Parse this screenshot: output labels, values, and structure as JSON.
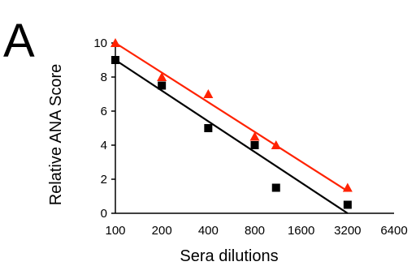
{
  "chart_data": {
    "type": "scatter",
    "panel_label": "A",
    "xlabel": "Sera dilutions",
    "ylabel": "Relative ANA Score",
    "x_scale": "log2",
    "xlim": [
      100,
      6400
    ],
    "ylim": [
      0,
      10
    ],
    "x_ticks": [
      100,
      200,
      400,
      800,
      1600,
      3200,
      6400
    ],
    "x_tick_labels": [
      "100",
      "200",
      "400",
      "800",
      "1600",
      "3200",
      "6400"
    ],
    "y_ticks": [
      0,
      2,
      4,
      6,
      8,
      10
    ],
    "y_tick_labels": [
      "0",
      "2",
      "4",
      "6",
      "8",
      "10"
    ],
    "grid": false,
    "series": [
      {
        "marker": "square",
        "color": "#000000",
        "points": [
          {
            "x": 100,
            "y": 9.0
          },
          {
            "x": 200,
            "y": 7.5
          },
          {
            "x": 400,
            "y": 5.0
          },
          {
            "x": 800,
            "y": 4.0
          },
          {
            "x": 1100,
            "y": 1.5
          },
          {
            "x": 3200,
            "y": 0.5
          }
        ],
        "fit_line": {
          "x": [
            100,
            3200
          ],
          "y": [
            9.0,
            0.0
          ]
        }
      },
      {
        "marker": "triangle",
        "color": "#ff2200",
        "points": [
          {
            "x": 100,
            "y": 10.0
          },
          {
            "x": 200,
            "y": 8.0
          },
          {
            "x": 400,
            "y": 7.0
          },
          {
            "x": 800,
            "y": 4.5
          },
          {
            "x": 1100,
            "y": 4.0
          },
          {
            "x": 3200,
            "y": 1.5
          }
        ],
        "fit_line": {
          "x": [
            100,
            3200
          ],
          "y": [
            10.0,
            1.3
          ]
        }
      }
    ]
  }
}
